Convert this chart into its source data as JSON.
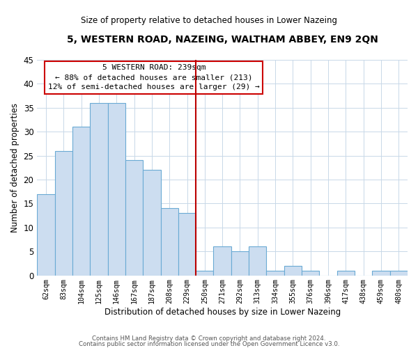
{
  "title": "5, WESTERN ROAD, NAZEING, WALTHAM ABBEY, EN9 2QN",
  "subtitle": "Size of property relative to detached houses in Lower Nazeing",
  "xlabel": "Distribution of detached houses by size in Lower Nazeing",
  "ylabel": "Number of detached properties",
  "bin_labels": [
    "62sqm",
    "83sqm",
    "104sqm",
    "125sqm",
    "146sqm",
    "167sqm",
    "187sqm",
    "208sqm",
    "229sqm",
    "250sqm",
    "271sqm",
    "292sqm",
    "313sqm",
    "334sqm",
    "355sqm",
    "376sqm",
    "396sqm",
    "417sqm",
    "438sqm",
    "459sqm",
    "480sqm"
  ],
  "bar_values": [
    17,
    26,
    31,
    36,
    36,
    24,
    22,
    14,
    13,
    1,
    6,
    5,
    6,
    1,
    2,
    1,
    0,
    1,
    0,
    1,
    1
  ],
  "bar_color": "#ccddf0",
  "bar_edge_color": "#6aaad4",
  "vline_x_index": 8,
  "vline_color": "#bb0000",
  "ylim": [
    0,
    45
  ],
  "yticks": [
    0,
    5,
    10,
    15,
    20,
    25,
    30,
    35,
    40,
    45
  ],
  "annotation_line1": "5 WESTERN ROAD: 239sqm",
  "annotation_line2": "← 88% of detached houses are smaller (213)",
  "annotation_line3": "12% of semi-detached houses are larger (29) →",
  "annotation_box_edge": "#cc0000",
  "footer1": "Contains HM Land Registry data © Crown copyright and database right 2024.",
  "footer2": "Contains public sector information licensed under the Open Government Licence v3.0.",
  "background_color": "#ffffff",
  "grid_color": "#c8d8e8"
}
